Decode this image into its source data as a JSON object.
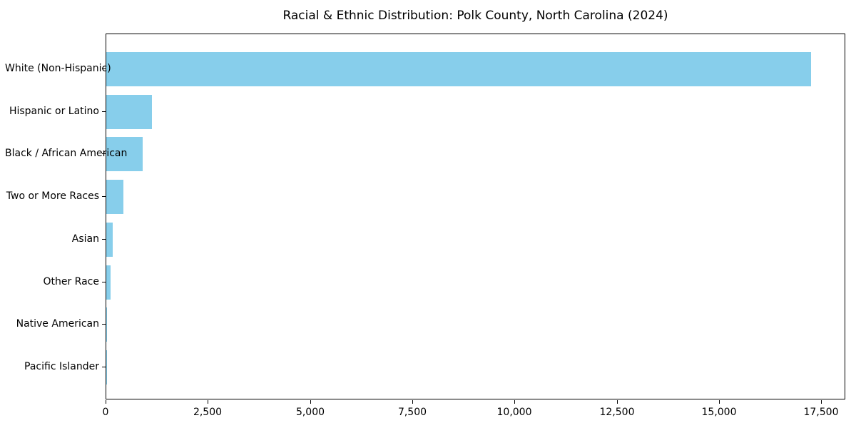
{
  "chart_data": {
    "type": "bar",
    "orientation": "horizontal",
    "title": "Racial & Ethnic Distribution: Polk County, North Carolina (2024)",
    "categories": [
      "White (Non-Hispanic)",
      "Hispanic or Latino",
      "Black / African American",
      "Two or More Races",
      "Asian",
      "Other Race",
      "Native American",
      "Pacific Islander"
    ],
    "values": [
      17230,
      1125,
      890,
      410,
      150,
      105,
      25,
      5
    ],
    "bar_color": "#87CEEB",
    "xlim": [
      0,
      18090
    ],
    "x_ticks": [
      0,
      2500,
      5000,
      7500,
      10000,
      12500,
      15000,
      17500
    ],
    "x_tick_labels": [
      "0",
      "2,500",
      "5,000",
      "7,500",
      "10,000",
      "12,500",
      "15,000",
      "17,500"
    ],
    "xlabel": "",
    "ylabel": "",
    "grid": false,
    "legend": null,
    "axis_color": "#000000",
    "background_color": "#ffffff"
  }
}
